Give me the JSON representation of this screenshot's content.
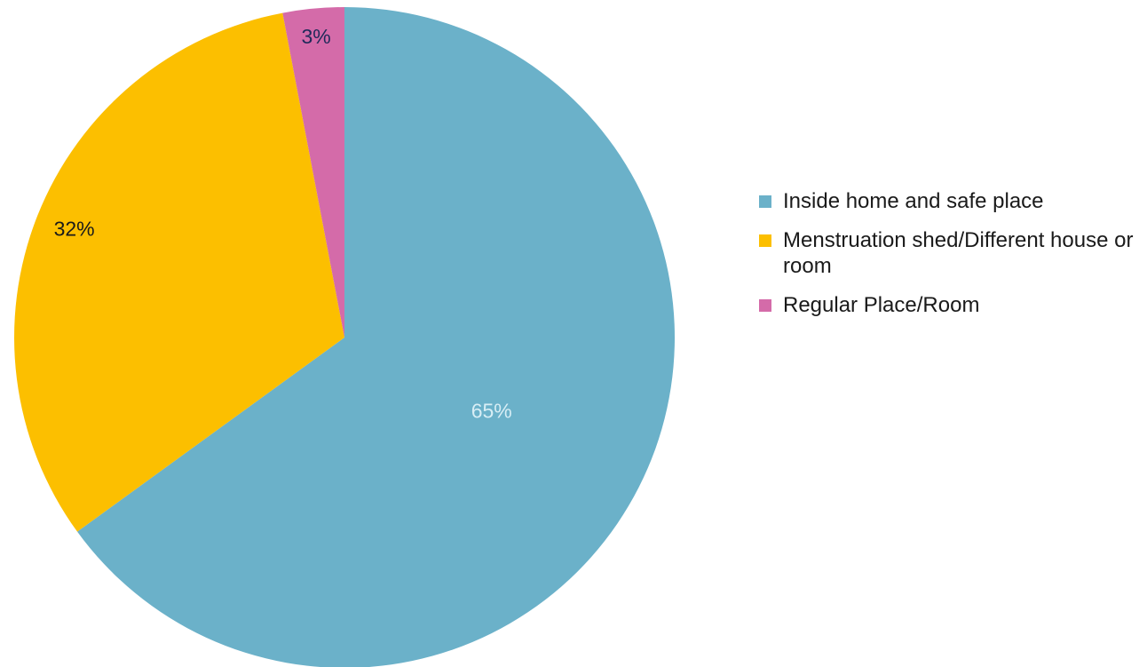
{
  "chart_data": {
    "type": "pie",
    "categories": [
      "Inside home and safe place",
      "Menstruation shed/Different house or room",
      "Regular Place/Room"
    ],
    "values": [
      65,
      32,
      3
    ],
    "value_labels": [
      "65%",
      "32%",
      "3%"
    ],
    "colors": [
      "#6bb1c9",
      "#fcbf00",
      "#d46ba9"
    ],
    "legend": "right"
  }
}
